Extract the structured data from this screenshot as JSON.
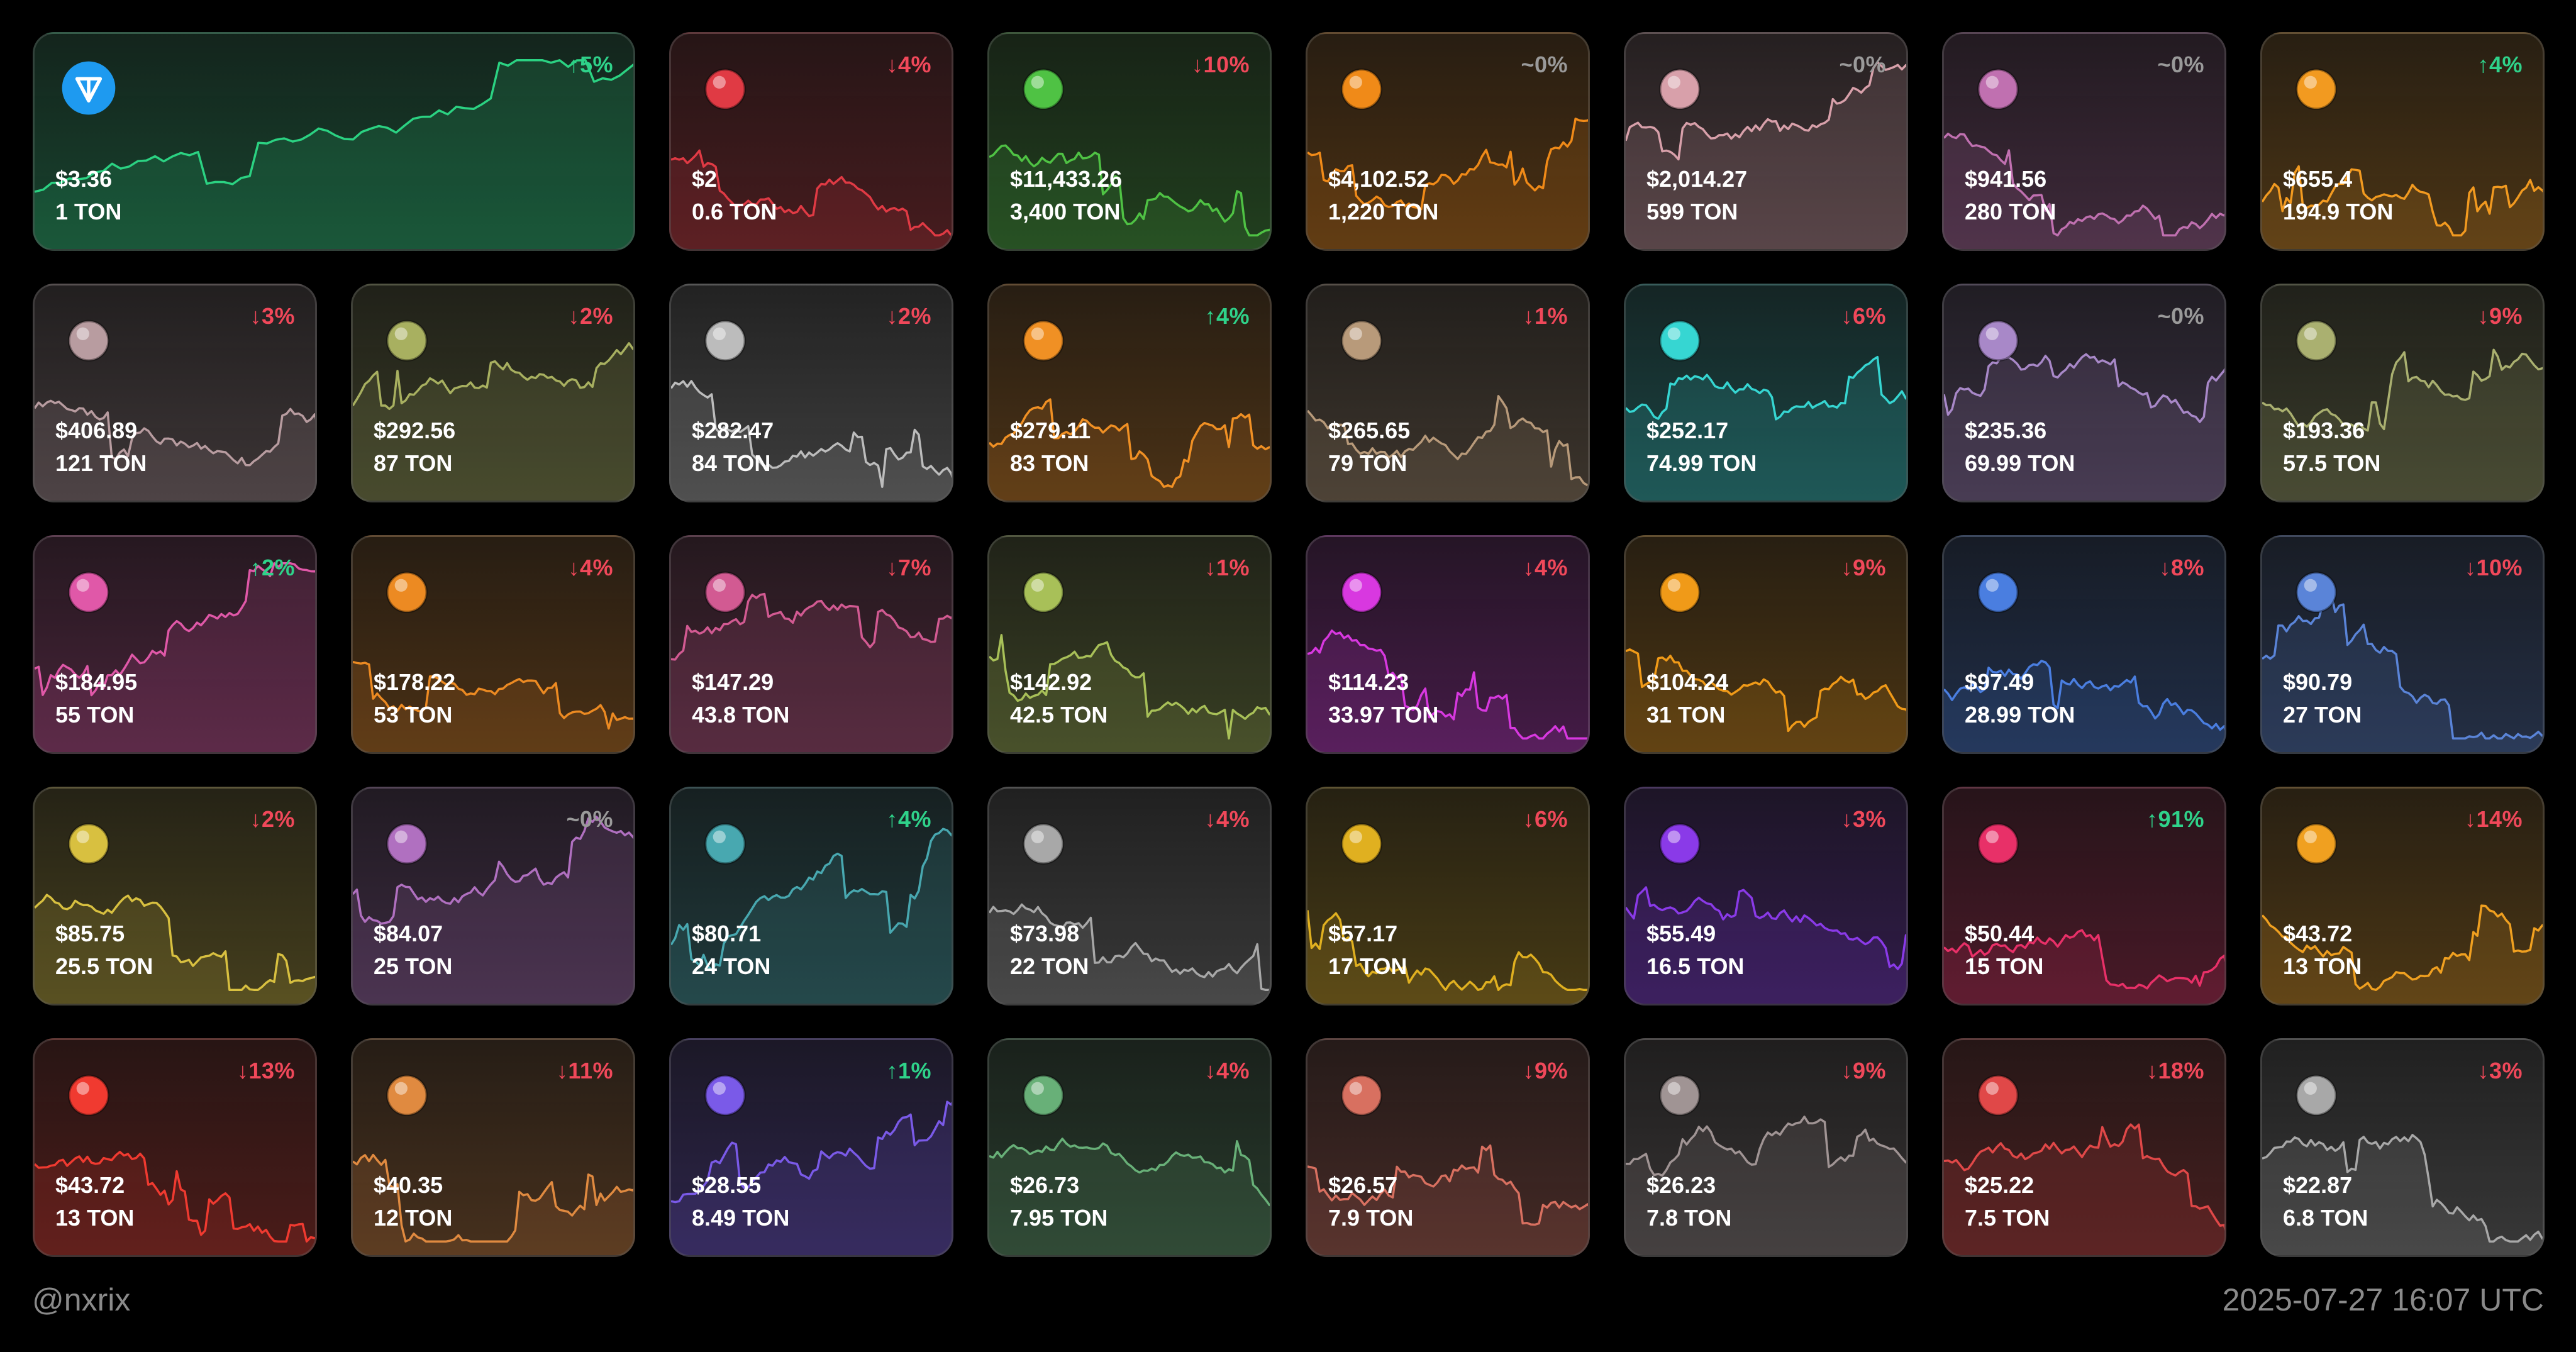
{
  "footer": {
    "handle": "@nxrix",
    "timestamp": "2025-07-27 16:07 UTC"
  },
  "colors": {
    "up": "#2fd28a",
    "down": "#f0485a",
    "flat": "#9a9a9a"
  },
  "cards": [
    {
      "usd": "$3.36",
      "ton": "1 TON",
      "change": "↑5%",
      "dir": "up",
      "color": "#2bd282",
      "icon": "ton-logo-icon"
    },
    {
      "usd": "$2",
      "ton": "0.6 TON",
      "change": "↓4%",
      "dir": "down",
      "color": "#e03a44",
      "icon": "lock-icon"
    },
    {
      "usd": "$11,433.26",
      "ton": "3,400 TON",
      "change": "↓10%",
      "dir": "down",
      "color": "#4fc244",
      "icon": "frog-icon"
    },
    {
      "usd": "$4,102.52",
      "ton": "1,220 TON",
      "change": "~0%",
      "dir": "flat",
      "color": "#f08a18",
      "icon": "heart-locket-icon"
    },
    {
      "usd": "$2,014.27",
      "ton": "599 TON",
      "change": "~0%",
      "dir": "flat",
      "color": "#d8a0aa",
      "icon": "cap-icon"
    },
    {
      "usd": "$941.56",
      "ton": "280 TON",
      "change": "~0%",
      "dir": "flat",
      "color": "#c070b0",
      "icon": "plum-icon"
    },
    {
      "usd": "$655.4",
      "ton": "194.9 TON",
      "change": "↑4%",
      "dir": "up",
      "color": "#f29a20",
      "icon": "helmet-icon"
    },
    {
      "usd": "$406.89",
      "ton": "121 TON",
      "change": "↓3%",
      "dir": "down",
      "color": "#b89ca0",
      "icon": "ring-icon"
    },
    {
      "usd": "$292.56",
      "ton": "87 TON",
      "change": "↓2%",
      "dir": "down",
      "color": "#a8b060",
      "icon": "perfume-icon"
    },
    {
      "usd": "$282.47",
      "ton": "84 TON",
      "change": "↓2%",
      "dir": "down",
      "color": "#bcbcbc",
      "icon": "handbag-icon"
    },
    {
      "usd": "$279.11",
      "ton": "83 TON",
      "change": "↑4%",
      "dir": "up",
      "color": "#f09024",
      "icon": "trophy-icon"
    },
    {
      "usd": "$265.65",
      "ton": "79 TON",
      "change": "↓1%",
      "dir": "down",
      "color": "#b89a7a",
      "icon": "crystal-icon"
    },
    {
      "usd": "$252.17",
      "ton": "74.99 TON",
      "change": "↓6%",
      "dir": "down",
      "color": "#36d6d2",
      "icon": "ice-crystals-icon"
    },
    {
      "usd": "$235.36",
      "ton": "69.99 TON",
      "change": "~0%",
      "dir": "flat",
      "color": "#a888c8",
      "icon": "gem-ring-icon"
    },
    {
      "usd": "$193.36",
      "ton": "57.5 TON",
      "change": "↓9%",
      "dir": "down",
      "color": "#aab070",
      "icon": "potion-icon"
    },
    {
      "usd": "$184.95",
      "ton": "55 TON",
      "change": "↑2%",
      "dir": "up",
      "color": "#e058a8",
      "icon": "flower-icon"
    },
    {
      "usd": "$178.22",
      "ton": "53 TON",
      "change": "↓4%",
      "dir": "down",
      "color": "#ec8a22",
      "icon": "gold-ring-icon"
    },
    {
      "usd": "$147.29",
      "ton": "43.8 TON",
      "change": "↓7%",
      "dir": "down",
      "color": "#d25a92",
      "icon": "lamp-icon"
    },
    {
      "usd": "$142.92",
      "ton": "42.5 TON",
      "change": "↓1%",
      "dir": "down",
      "color": "#a8c058",
      "icon": "wireframe-icon"
    },
    {
      "usd": "$114.23",
      "ton": "33.97 TON",
      "change": "↓4%",
      "dir": "down",
      "color": "#d838e0",
      "icon": "lips-icon"
    },
    {
      "usd": "$104.24",
      "ton": "31 TON",
      "change": "↓9%",
      "dir": "down",
      "color": "#f09a18",
      "icon": "toad-icon"
    },
    {
      "usd": "$97.49",
      "ton": "28.99 TON",
      "change": "↓8%",
      "dir": "down",
      "color": "#4a7ee0",
      "icon": "clock-icon"
    },
    {
      "usd": "$90.79",
      "ton": "27 TON",
      "change": "↓10%",
      "dir": "down",
      "color": "#5a84d8",
      "icon": "skull-icon"
    },
    {
      "usd": "$85.75",
      "ton": "25.5 TON",
      "change": "↓2%",
      "dir": "down",
      "color": "#d8c040",
      "icon": "moto-helmet-icon"
    },
    {
      "usd": "$84.07",
      "ton": "25 TON",
      "change": "~0%",
      "dir": "flat",
      "color": "#b070c0",
      "icon": "cigar-icon"
    },
    {
      "usd": "$80.71",
      "ton": "24 TON",
      "change": "↑4%",
      "dir": "up",
      "color": "#48a8b0",
      "icon": "blue-ring-icon"
    },
    {
      "usd": "$73.98",
      "ton": "22 TON",
      "change": "↓4%",
      "dir": "down",
      "color": "#a8a8a8",
      "icon": "car-icon"
    },
    {
      "usd": "$57.17",
      "ton": "17 TON",
      "change": "↓6%",
      "dir": "down",
      "color": "#e0b020",
      "icon": "ring-box-icon"
    },
    {
      "usd": "$55.49",
      "ton": "16.5 TON",
      "change": "↓3%",
      "dir": "down",
      "color": "#8a3ae8",
      "icon": "teddy-bear-icon"
    },
    {
      "usd": "$50.44",
      "ton": "15 TON",
      "change": "↑91%",
      "dir": "up",
      "color": "#e83068",
      "icon": "bow-icon"
    },
    {
      "usd": "$43.72",
      "ton": "13 TON",
      "change": "↓14%",
      "dir": "down",
      "color": "#f0a020",
      "icon": "pumpkin-icon"
    },
    {
      "usd": "$43.72",
      "ton": "13 TON",
      "change": "↓13%",
      "dir": "down",
      "color": "#f03a30",
      "icon": "voodoo-doll-icon"
    },
    {
      "usd": "$40.35",
      "ton": "12 TON",
      "change": "↓11%",
      "dir": "down",
      "color": "#e08a40",
      "icon": "jar-icon"
    },
    {
      "usd": "$28.55",
      "ton": "8.49 TON",
      "change": "↑1%",
      "dir": "up",
      "color": "#7a5ae8",
      "icon": "broom-icon"
    },
    {
      "usd": "$26.73",
      "ton": "7.95 TON",
      "change": "↓4%",
      "dir": "down",
      "color": "#68b078",
      "icon": "flask-icon"
    },
    {
      "usd": "$26.57",
      "ton": "7.9 TON",
      "change": "↓9%",
      "dir": "down",
      "color": "#d87060",
      "icon": "case-icon"
    },
    {
      "usd": "$26.23",
      "ton": "7.8 TON",
      "change": "↓9%",
      "dir": "down",
      "color": "#a09494",
      "icon": "candle-icon"
    },
    {
      "usd": "$25.22",
      "ton": "7.5 TON",
      "change": "↓18%",
      "dir": "down",
      "color": "#e04848",
      "icon": "top-hat-icon"
    },
    {
      "usd": "$22.87",
      "ton": "6.8 TON",
      "change": "↓3%",
      "dir": "down",
      "color": "#a8a8a8",
      "icon": "skull-mask-icon"
    }
  ]
}
